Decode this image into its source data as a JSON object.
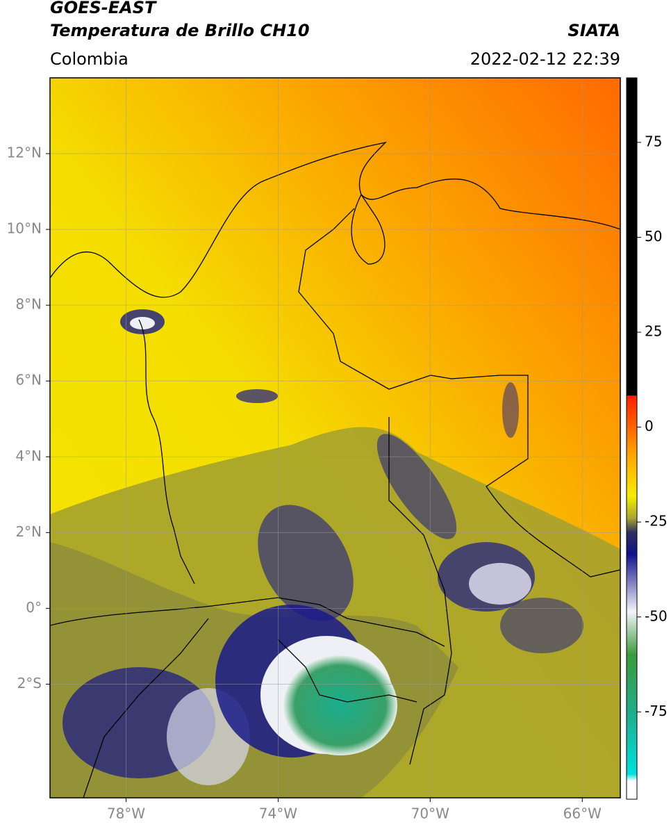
{
  "header": {
    "title": "GOES-EAST",
    "subtitle": "Temperatura de Brillo CH10",
    "source": "SIATA",
    "region": "Colombia",
    "timestamp": "2022-02-12 22:39"
  },
  "map": {
    "lonlim": [
      -80,
      -65
    ],
    "latlim": [
      -5,
      14
    ],
    "lon_ticks": [
      {
        "value": -78,
        "label": "78°W"
      },
      {
        "value": -74,
        "label": "74°W"
      },
      {
        "value": -70,
        "label": "70°W"
      },
      {
        "value": -66,
        "label": "66°W"
      }
    ],
    "lat_ticks": [
      {
        "value": 12,
        "label": "12°N"
      },
      {
        "value": 10,
        "label": "10°N"
      },
      {
        "value": 8,
        "label": "8°N"
      },
      {
        "value": 6,
        "label": "6°N"
      },
      {
        "value": 4,
        "label": "4°N"
      },
      {
        "value": 2,
        "label": "2°N"
      },
      {
        "value": 0,
        "label": "0°"
      },
      {
        "value": -2,
        "label": "2°S"
      }
    ]
  },
  "colorbar": {
    "lim": [
      -98,
      92
    ],
    "ticks": [
      75,
      50,
      25,
      0,
      -25,
      -50,
      -75
    ]
  }
}
